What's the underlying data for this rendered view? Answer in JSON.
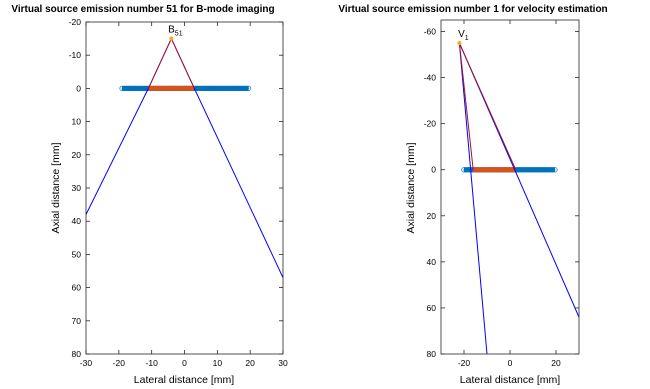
{
  "chart_data": [
    {
      "type": "line",
      "title": "Virtual source emission number 51 for B-mode imaging",
      "xlabel": "Lateral distance [mm]",
      "ylabel": "Axial distance [mm]",
      "xlim": [
        -30,
        30
      ],
      "ylim": [
        -20,
        80
      ],
      "y_reversed": true,
      "grid": false,
      "xticks": [
        "-30",
        "-20",
        "-10",
        "0",
        "10",
        "20",
        "30"
      ],
      "yticks": [
        "-20",
        "-10",
        "0",
        "10",
        "20",
        "30",
        "40",
        "50",
        "60",
        "70",
        "80"
      ],
      "elements": {
        "x_from": -19,
        "x_to": 19.5,
        "y": 0,
        "color": "#0072bd"
      },
      "active_aperture": {
        "x_from": -11,
        "x_to": 3,
        "y": 0,
        "color": "#d95319"
      },
      "virtual_source": {
        "label": "B",
        "subscript": "51",
        "x": -4,
        "y": -15
      },
      "series": [
        {
          "color": "#0000ff",
          "x": [
            -30,
            -11,
            -4,
            3,
            30
          ],
          "y": [
            38,
            0,
            -15,
            0,
            57
          ]
        },
        {
          "color": "#a2142f",
          "x": [
            -11,
            -4,
            3
          ],
          "y": [
            0,
            -15,
            0
          ]
        }
      ]
    },
    {
      "type": "line",
      "title": "Virtual source emission number 1 for velocity estimation",
      "xlabel": "Lateral distance [mm]",
      "ylabel": "Axial distance [mm]",
      "xlim": [
        -30,
        30
      ],
      "ylim": [
        -65,
        80
      ],
      "y_reversed": true,
      "grid": false,
      "xticks": [
        "-20",
        "0",
        "20"
      ],
      "yticks": [
        "-60",
        "-40",
        "-20",
        "0",
        "20",
        "40",
        "60",
        "80"
      ],
      "elements": {
        "x_from": -20,
        "x_to": 19.5,
        "y": 0,
        "color": "#0072bd"
      },
      "active_aperture": {
        "x_from": -16,
        "x_to": 2.5,
        "y": 0,
        "color": "#d95319"
      },
      "virtual_source": {
        "label": "V",
        "subscript": "1",
        "x": -22,
        "y": -55
      },
      "series": [
        {
          "color": "#0000ff",
          "x": [
            -10,
            -22,
            30
          ],
          "y": [
            80,
            -55,
            64
          ]
        },
        {
          "color": "#a2142f",
          "x": [
            -16,
            -22,
            2.5
          ],
          "y": [
            0,
            -55,
            0
          ]
        }
      ]
    }
  ]
}
